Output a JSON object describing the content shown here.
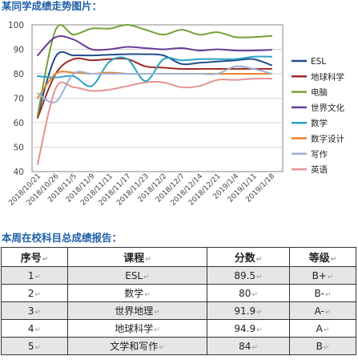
{
  "chart_heading": "某同学成绩走势图片：",
  "table_heading": "本周在校科目总成绩报告：",
  "para_mark": "↵",
  "chart_data": {
    "type": "line",
    "title": "",
    "xlabel": "",
    "ylabel": "",
    "ylim": [
      40,
      100
    ],
    "yticks": [
      40,
      50,
      60,
      70,
      80,
      90,
      100
    ],
    "grid": true,
    "legend": "right",
    "categories": [
      "2018/10/21",
      "2018/10/26",
      "2018/11/5",
      "2018/11/9",
      "2018/11/11",
      "2018/11/17",
      "2018/11/23",
      "2018/12/2",
      "2018/12/7",
      "2018/12/14",
      "2018/12/21",
      "2019/1/4",
      "2019/1/11",
      "2019/1/18"
    ],
    "series": [
      {
        "name": "ESL",
        "color": "#1f4e8c",
        "values": [
          63,
          87,
          87.5,
          87.5,
          87.8,
          88,
          88,
          87.5,
          84,
          84.5,
          85,
          85.5,
          86,
          83.5
        ]
      },
      {
        "name": "地球科学",
        "color": "#9b2a26",
        "values": [
          62,
          80,
          86,
          85.5,
          86,
          86,
          83,
          82.5,
          82,
          82,
          82,
          82,
          82,
          82
        ]
      },
      {
        "name": "电脑",
        "color": "#77a03a",
        "values": [
          63,
          98,
          96,
          98.5,
          98.5,
          100,
          98,
          96,
          98,
          96,
          97,
          95,
          95,
          95.5
        ]
      },
      {
        "name": "世界文化",
        "color": "#6a3d99",
        "values": [
          87.5,
          95,
          94,
          90,
          90,
          91,
          90.5,
          90,
          90.5,
          89.5,
          90,
          89.5,
          89.5,
          89.8
        ]
      },
      {
        "name": "数学",
        "color": "#2aa3c4",
        "values": [
          79,
          78.5,
          79,
          75,
          85,
          86,
          77,
          86,
          85.5,
          86,
          86,
          86,
          87,
          87
        ]
      },
      {
        "name": "数字设计",
        "color": "#e8832e",
        "values": [
          70,
          80,
          80.5,
          80,
          80.5,
          80,
          80,
          80,
          80,
          80,
          80,
          80,
          80,
          80
        ]
      },
      {
        "name": "写作",
        "color": "#9db3d6",
        "values": [
          72,
          68.5,
          80,
          80,
          80,
          80,
          80,
          80,
          80,
          80,
          80,
          83,
          82,
          80
        ]
      },
      {
        "name": "英语",
        "color": "#e39391",
        "values": [
          43,
          74,
          74.5,
          73,
          73.5,
          75,
          76.5,
          76.5,
          74.5,
          75,
          77.5,
          77.5,
          78,
          78
        ]
      }
    ]
  },
  "table": {
    "headers": [
      "序号",
      "课程",
      "分数",
      "等级"
    ],
    "rows": [
      [
        "1",
        "ESL",
        "89.5",
        "B+"
      ],
      [
        "2",
        "数学",
        "80",
        "B-"
      ],
      [
        "3",
        "世界地理",
        "91.9",
        "A-"
      ],
      [
        "4",
        "地球科学",
        "94.9",
        "A"
      ],
      [
        "5",
        "文学和写作",
        "84",
        "B"
      ]
    ]
  }
}
